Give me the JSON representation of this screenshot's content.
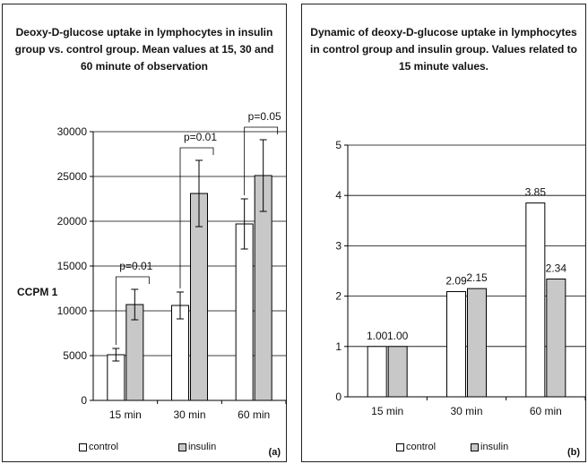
{
  "chart_data": [
    {
      "type": "bar",
      "panel_label": "(a)",
      "title": "Deoxy-D-glucose uptake in lymphocytes in insulin group vs. control group. Mean values at 15, 30 and 60 minute of observation",
      "categories": [
        "15 min",
        "30 min",
        "60 min"
      ],
      "series": [
        {
          "name": "control",
          "values": [
            5100,
            10600,
            19700
          ],
          "error": [
            700,
            1500,
            2800
          ]
        },
        {
          "name": "insulin",
          "values": [
            10700,
            23100,
            25100
          ],
          "error": [
            1700,
            3700,
            4000
          ]
        }
      ],
      "ylabel": "CCPM 1",
      "ylim": [
        0,
        30000
      ],
      "yticks": [
        0,
        5000,
        10000,
        15000,
        20000,
        25000,
        30000
      ],
      "grid": true,
      "legend_position": "bottom",
      "annotations": [
        {
          "category": "15 min",
          "text": "p=0.01"
        },
        {
          "category": "30 min",
          "text": "p=0.01"
        },
        {
          "category": "60 min",
          "text": "p=0.05"
        }
      ]
    },
    {
      "type": "bar",
      "panel_label": "(b)",
      "title": "Dynamic of deoxy-D-glucose uptake in lymphocytes in control group and insulin group. Values related to 15 minute values.",
      "categories": [
        "15 min",
        "30 min",
        "60 min"
      ],
      "series": [
        {
          "name": "control",
          "values": [
            1.0,
            2.09,
            3.85
          ],
          "labels": [
            "1.00",
            "2.09",
            "3.85"
          ]
        },
        {
          "name": "insulin",
          "values": [
            1.0,
            2.15,
            2.34
          ],
          "labels": [
            "1.00",
            "2.15",
            "2.34"
          ]
        }
      ],
      "ylim": [
        0,
        5
      ],
      "yticks": [
        0,
        1,
        2,
        3,
        4,
        5
      ],
      "grid": true,
      "legend_position": "bottom"
    }
  ],
  "colors": {
    "control": "#ffffff",
    "insulin": "#c8c8c8",
    "outline": "#000000",
    "grid": "#000000"
  }
}
